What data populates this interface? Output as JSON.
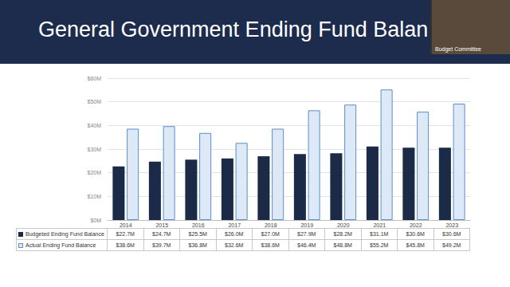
{
  "chart_data": {
    "type": "bar",
    "title": "General Government Ending Fund Balan",
    "annotations": [
      "Budget Committee"
    ],
    "categories": [
      "2014",
      "2015",
      "2016",
      "2017",
      "2018",
      "2019",
      "2020",
      "2021",
      "2022",
      "2023"
    ],
    "series": [
      {
        "name": "Budgeted Ending Fund Balance",
        "color": "#1b2a47",
        "values": [
          22.7,
          24.7,
          25.5,
          26.0,
          27.0,
          27.9,
          28.2,
          31.1,
          30.6,
          30.6
        ],
        "value_labels": [
          "$22.7M",
          "$24.7M",
          "$25.5M",
          "$26.0M",
          "$27.0M",
          "$27.9M",
          "$28.2M",
          "$31.1M",
          "$30.6M",
          "$30.6M"
        ]
      },
      {
        "name": "Actual Ending Fund Balance",
        "color": "#dde9f6",
        "values": [
          38.6,
          39.7,
          36.8,
          32.6,
          38.6,
          46.4,
          48.8,
          55.2,
          45.8,
          49.2
        ],
        "value_labels": [
          "$38.6M",
          "$39.7M",
          "$36.8M",
          "$32.6M",
          "$38.6M",
          "$46.4M",
          "$48.8M",
          "$55.2M",
          "$45.8M",
          "$49.2M"
        ]
      }
    ],
    "ylim": [
      0,
      60
    ],
    "yticks": [
      {
        "value": 0,
        "label": "$0M"
      },
      {
        "value": 10,
        "label": "$10M"
      },
      {
        "value": 20,
        "label": "$20M"
      },
      {
        "value": 30,
        "label": "$30M"
      },
      {
        "value": 40,
        "label": "$40M"
      },
      {
        "value": 50,
        "label": "$50M"
      },
      {
        "value": 60,
        "label": "$60M"
      }
    ],
    "grid": true
  }
}
